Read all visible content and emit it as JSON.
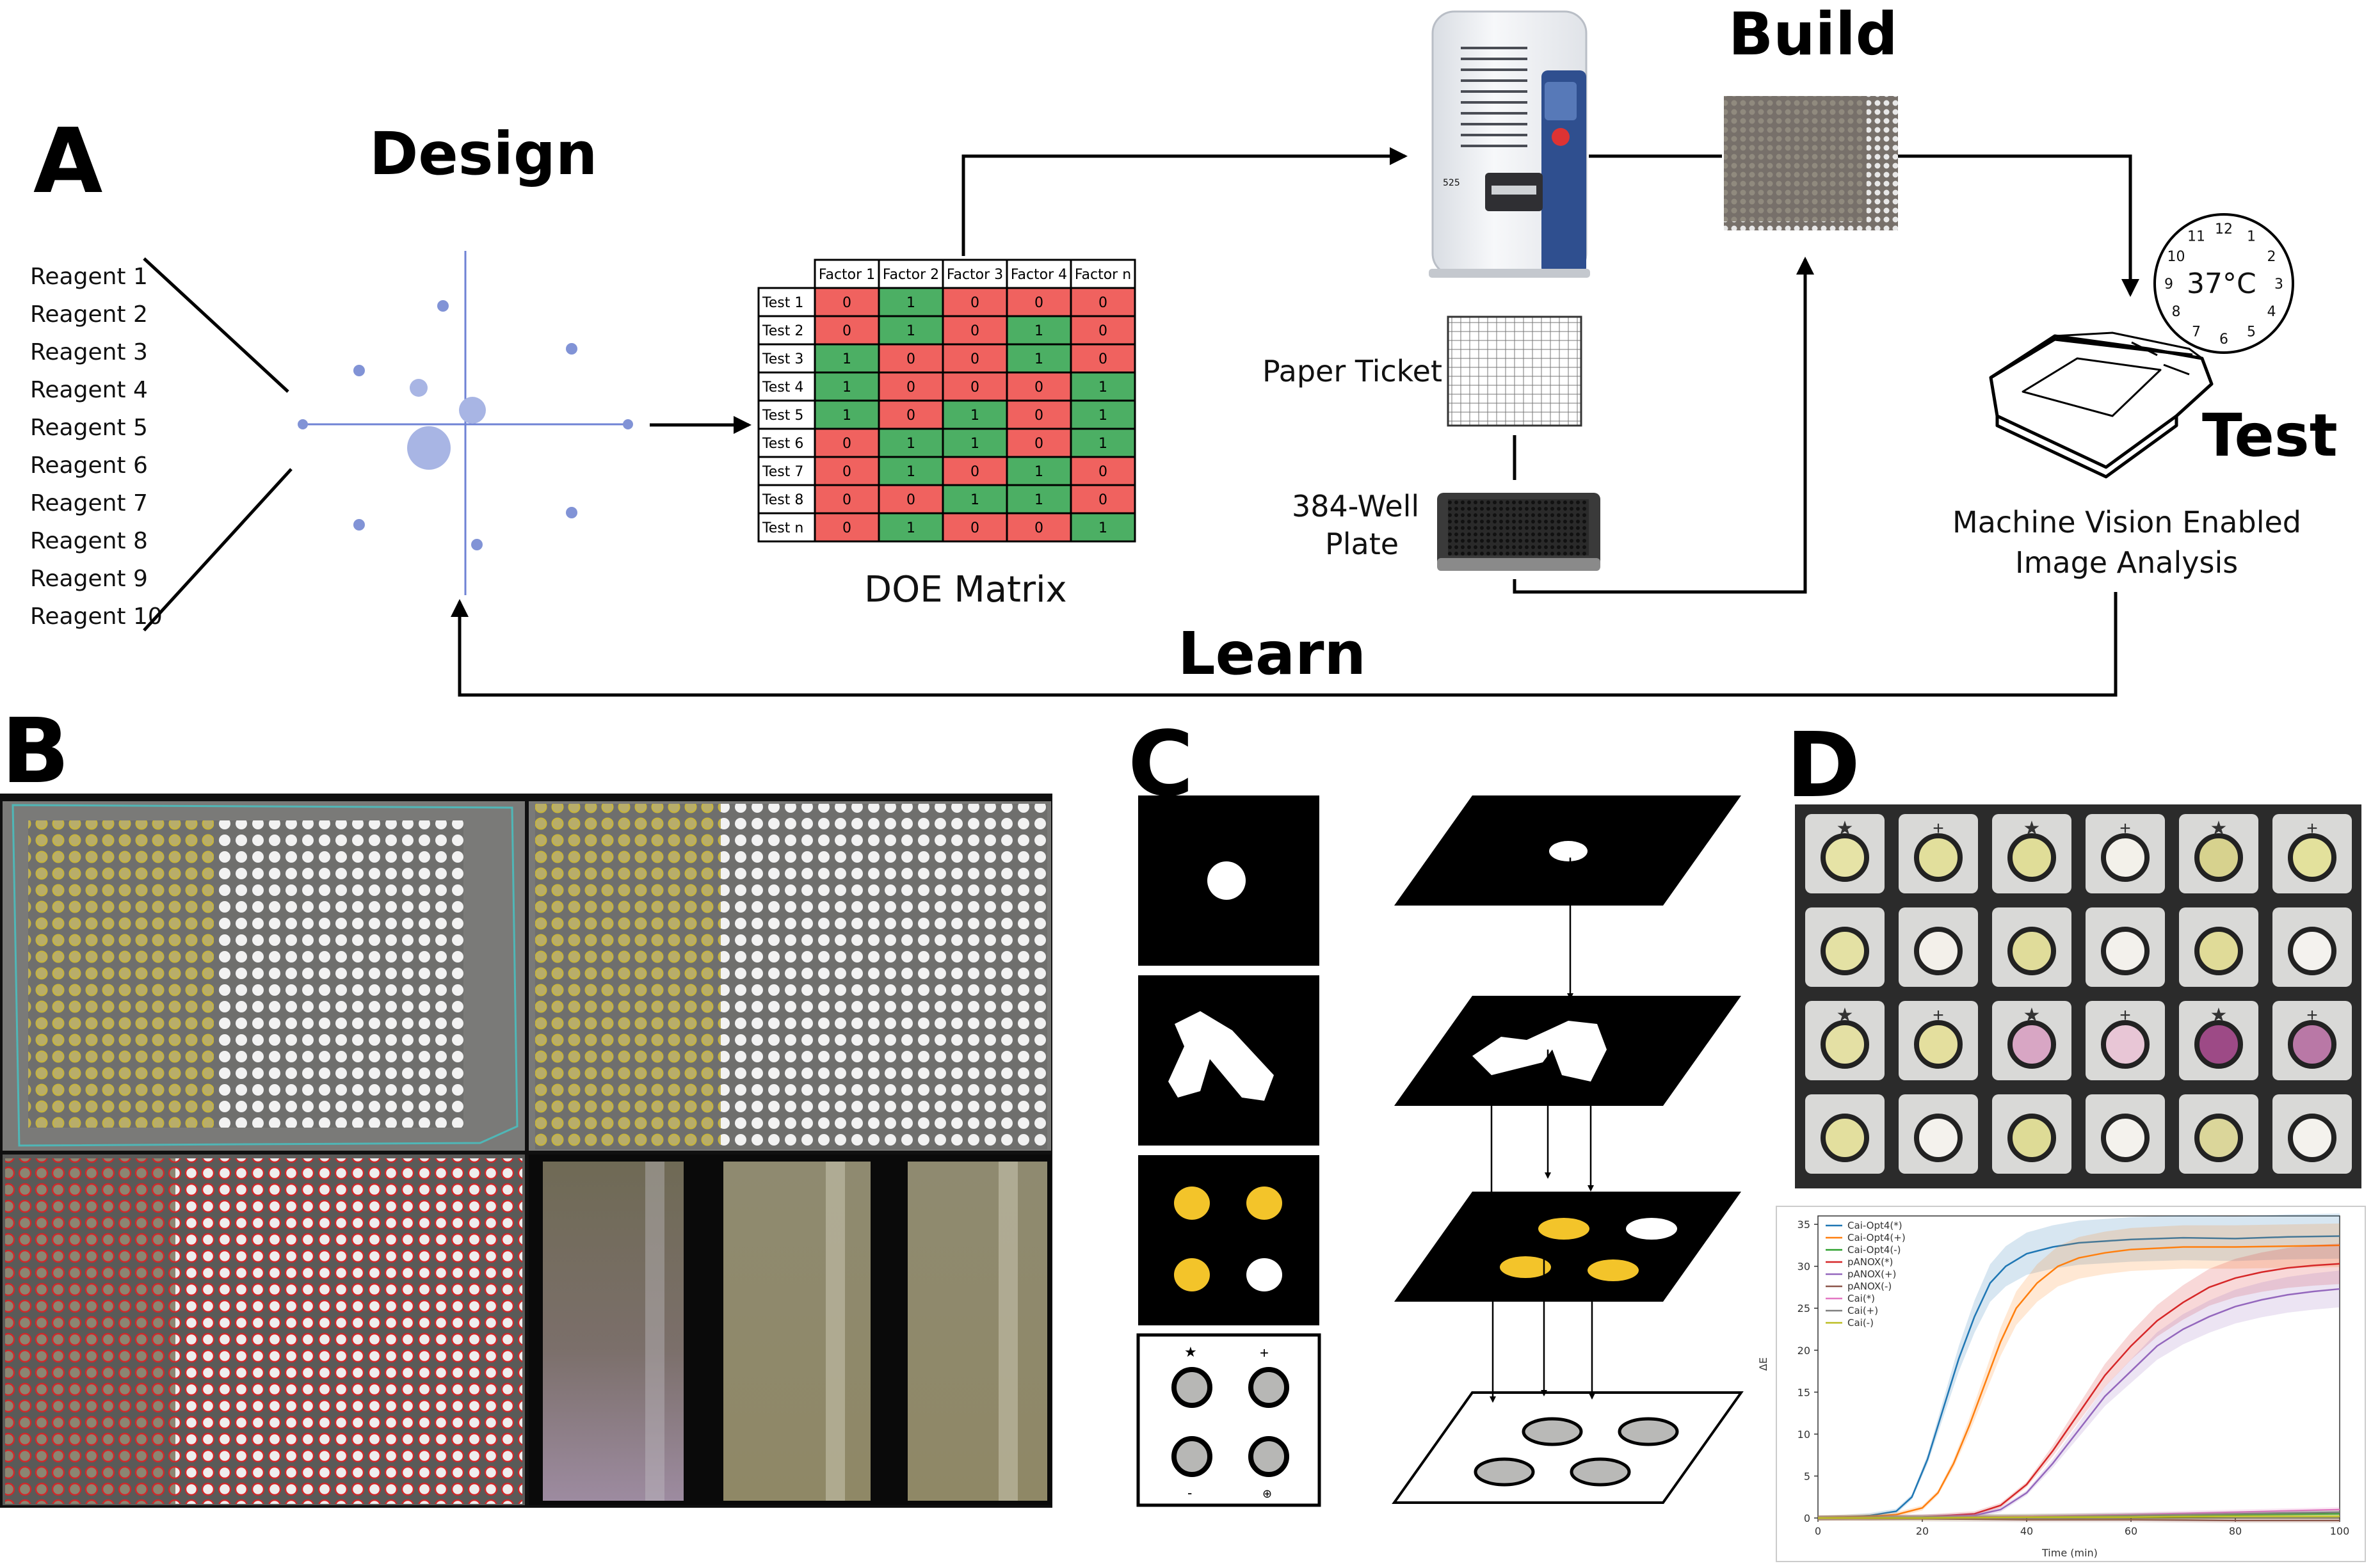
{
  "panels": {
    "a": "A",
    "b": "B",
    "c": "C",
    "d": "D"
  },
  "cycle": {
    "design": "Design",
    "build": "Build",
    "test": "Test",
    "learn": "Learn"
  },
  "reagents": [
    "Reagent 1",
    "Reagent 2",
    "Reagent 3",
    "Reagent 4",
    "Reagent 5",
    "Reagent 6",
    "Reagent 7",
    "Reagent 8",
    "Reagent 9",
    "Reagent 10"
  ],
  "doe": {
    "title": "DOE Matrix",
    "columns": [
      "Factor 1",
      "Factor 2",
      "Factor 3",
      "Factor 4",
      "Factor n"
    ],
    "rows": [
      {
        "label": "Test 1",
        "values": [
          0,
          1,
          0,
          0,
          0
        ]
      },
      {
        "label": "Test 2",
        "values": [
          0,
          1,
          0,
          1,
          0
        ]
      },
      {
        "label": "Test 3",
        "values": [
          1,
          0,
          0,
          1,
          0
        ]
      },
      {
        "label": "Test 4",
        "values": [
          1,
          0,
          0,
          0,
          1
        ]
      },
      {
        "label": "Test 5",
        "values": [
          1,
          0,
          1,
          0,
          1
        ]
      },
      {
        "label": "Test 6",
        "values": [
          0,
          1,
          1,
          0,
          1
        ]
      },
      {
        "label": "Test 7",
        "values": [
          0,
          1,
          0,
          1,
          0
        ]
      },
      {
        "label": "Test 8",
        "values": [
          0,
          0,
          1,
          1,
          0
        ]
      },
      {
        "label": "Test n",
        "values": [
          0,
          1,
          0,
          0,
          1
        ]
      }
    ],
    "color_one": "#4caf64",
    "color_zero": "#f0625f"
  },
  "build": {
    "paper_ticket": "Paper Ticket",
    "plate_line1": "384-Well",
    "plate_line2": "Plate",
    "printer_label": "525"
  },
  "test": {
    "caption_line1": "Machine Vision Enabled",
    "caption_line2": "Image Analysis",
    "clock_temp": "37°C",
    "clock_numbers": [
      "12",
      "1",
      "2",
      "3",
      "4",
      "5",
      "6",
      "7",
      "8",
      "9",
      "10",
      "11"
    ]
  },
  "card_marks": [
    "★",
    "+",
    "★",
    "+",
    "★",
    "+"
  ],
  "chart_data": {
    "type": "line",
    "xlabel": "Time (min)",
    "ylabel": "ΔE",
    "xlim": [
      0,
      100
    ],
    "ylim": [
      0,
      36
    ],
    "xticks": [
      0,
      20,
      40,
      60,
      80,
      100
    ],
    "yticks": [
      0,
      5,
      10,
      15,
      20,
      25,
      30,
      35
    ],
    "legend_position": "top-left",
    "series": [
      {
        "name": "Cai-Opt4(*)",
        "color": "#1f77b4",
        "x": [
          0,
          5,
          10,
          15,
          18,
          21,
          24,
          27,
          30,
          33,
          36,
          40,
          45,
          50,
          55,
          60,
          70,
          80,
          90,
          100
        ],
        "y": [
          0,
          0.1,
          0.3,
          0.8,
          2.5,
          7,
          13,
          19,
          24,
          28,
          30,
          31.5,
          32.3,
          32.8,
          33,
          33.2,
          33.4,
          33.3,
          33.5,
          33.6
        ]
      },
      {
        "name": "Cai-Opt4(+)",
        "color": "#ff7f0e",
        "x": [
          0,
          5,
          10,
          15,
          20,
          23,
          26,
          29,
          32,
          35,
          38,
          42,
          46,
          50,
          55,
          60,
          70,
          80,
          90,
          100
        ],
        "y": [
          0,
          0.1,
          0.2,
          0.4,
          1.2,
          3,
          6.5,
          11,
          16,
          21,
          25,
          28,
          30,
          31,
          31.6,
          32,
          32.3,
          32.3,
          32.4,
          32.5
        ]
      },
      {
        "name": "Cai-Opt4(-)",
        "color": "#2ca02c",
        "x": [
          0,
          20,
          40,
          60,
          80,
          100
        ],
        "y": [
          0,
          0.1,
          0.2,
          0.3,
          0.4,
          0.5
        ]
      },
      {
        "name": "pANOX(*)",
        "color": "#d62728",
        "x": [
          0,
          10,
          20,
          30,
          35,
          40,
          45,
          50,
          55,
          60,
          65,
          70,
          75,
          80,
          85,
          90,
          95,
          100
        ],
        "y": [
          0,
          0,
          0.1,
          0.5,
          1.5,
          4,
          8,
          12.5,
          17,
          20.5,
          23.5,
          25.7,
          27.5,
          28.6,
          29.3,
          29.8,
          30.1,
          30.3
        ]
      },
      {
        "name": "pANOX(+)",
        "color": "#9467bd",
        "x": [
          0,
          10,
          20,
          30,
          35,
          40,
          45,
          50,
          55,
          60,
          65,
          70,
          75,
          80,
          85,
          90,
          95,
          100
        ],
        "y": [
          0,
          0,
          0.1,
          0.3,
          1,
          3,
          6.5,
          10.5,
          14.5,
          17.5,
          20.5,
          22.5,
          24,
          25.2,
          26,
          26.6,
          27,
          27.3
        ]
      },
      {
        "name": "pANOX(-)",
        "color": "#8c564b",
        "x": [
          0,
          20,
          40,
          60,
          80,
          100
        ],
        "y": [
          0,
          -0.1,
          -0.2,
          -0.2,
          -0.3,
          -0.3
        ]
      },
      {
        "name": "Cai(*)",
        "color": "#e377c2",
        "x": [
          0,
          20,
          40,
          60,
          80,
          100
        ],
        "y": [
          0,
          0.1,
          0.2,
          0.4,
          0.7,
          1
        ]
      },
      {
        "name": "Cai(+)",
        "color": "#7f7f7f",
        "x": [
          0,
          20,
          40,
          60,
          80,
          100
        ],
        "y": [
          0,
          0.1,
          0.1,
          0.3,
          0.5,
          0.7
        ]
      },
      {
        "name": "Cai(-)",
        "color": "#bcbd22",
        "x": [
          0,
          20,
          40,
          60,
          80,
          100
        ],
        "y": [
          0,
          0,
          0.1,
          0.1,
          0.2,
          0.2
        ]
      }
    ]
  }
}
